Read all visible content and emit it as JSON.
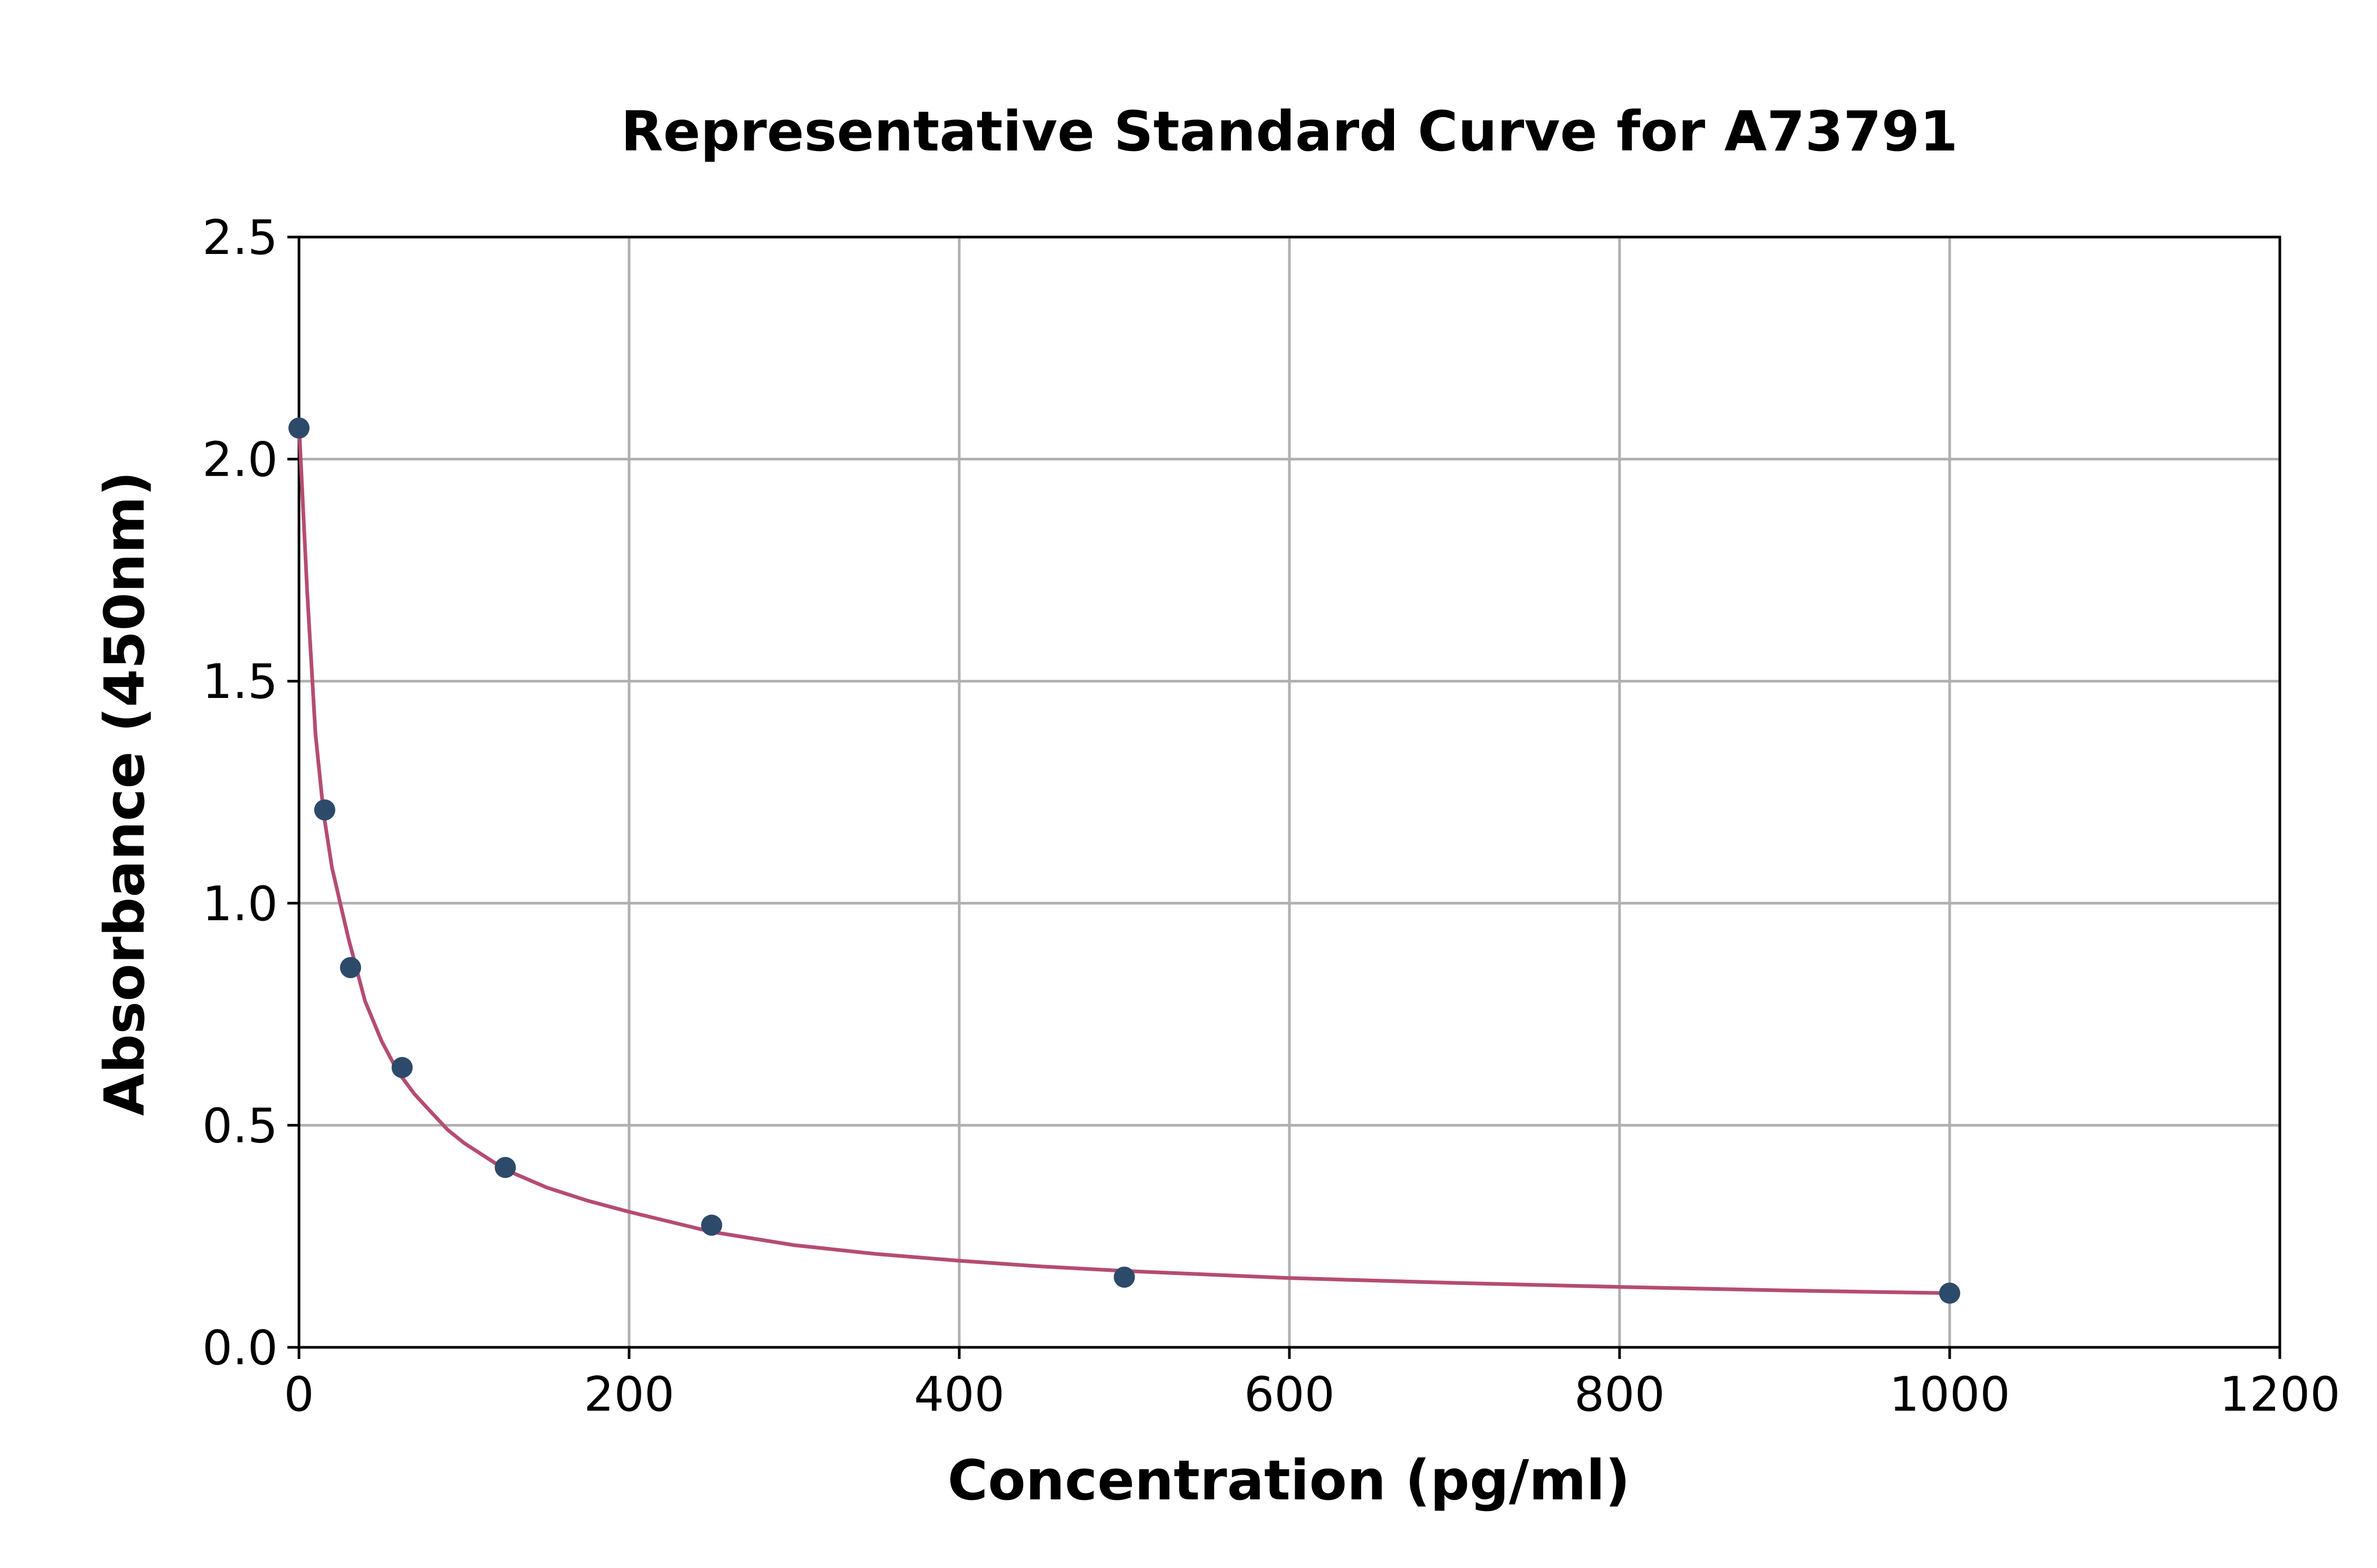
{
  "chart_data": {
    "type": "scatter",
    "title": "Representative Standard Curve for A73791",
    "xlabel": "Concentration (pg/ml)",
    "ylabel": "Absorbance (450nm)",
    "xlim": [
      0,
      1200
    ],
    "ylim": [
      0,
      2.5
    ],
    "xticks": [
      "0",
      "200",
      "400",
      "600",
      "800",
      "1000",
      "1200"
    ],
    "yticks": [
      "0.0",
      "0.5",
      "1.0",
      "1.5",
      "2.0",
      "2.5"
    ],
    "grid": true,
    "legend": "none",
    "colors": {
      "points": "#2d4a6b",
      "curve": "#b54c72"
    },
    "series": [
      {
        "type": "scatter",
        "x": [
          0,
          15.6,
          31.25,
          62.5,
          125,
          250,
          500,
          1000
        ],
        "y": [
          2.07,
          1.21,
          0.855,
          0.63,
          0.405,
          0.275,
          0.158,
          0.122
        ]
      },
      {
        "type": "line",
        "x": [
          0,
          5,
          10,
          15,
          20,
          25,
          30,
          40,
          50,
          60,
          70,
          80,
          90,
          100,
          125,
          150,
          175,
          200,
          250,
          300,
          350,
          400,
          450,
          500,
          600,
          700,
          800,
          900,
          1000
        ],
        "y": [
          2.08,
          1.7,
          1.38,
          1.2,
          1.08,
          1.0,
          0.92,
          0.78,
          0.69,
          0.62,
          0.57,
          0.53,
          0.49,
          0.46,
          0.4,
          0.36,
          0.33,
          0.305,
          0.26,
          0.23,
          0.21,
          0.195,
          0.182,
          0.172,
          0.156,
          0.145,
          0.136,
          0.128,
          0.122
        ]
      }
    ]
  }
}
